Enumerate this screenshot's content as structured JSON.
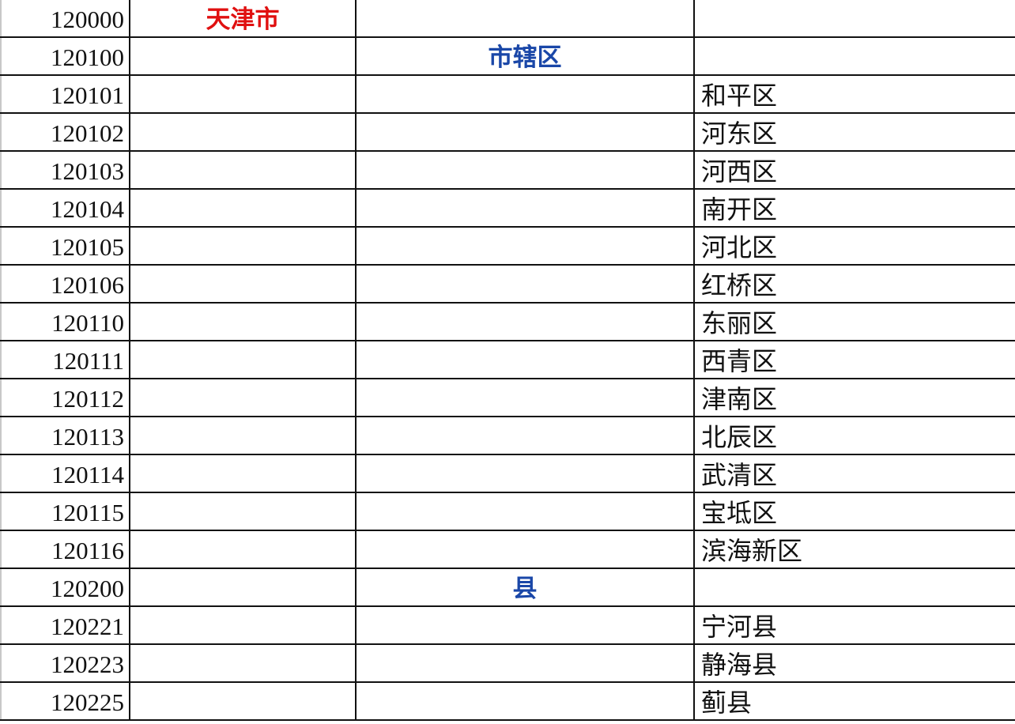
{
  "colors": {
    "province": "#e01010",
    "prefecture": "#1a47a8",
    "county": "#111111"
  },
  "rows": [
    {
      "code": "120000",
      "province": "天津市",
      "prefecture": "",
      "county": ""
    },
    {
      "code": "120100",
      "province": "",
      "prefecture": "市辖区",
      "county": ""
    },
    {
      "code": "120101",
      "province": "",
      "prefecture": "",
      "county": "和平区"
    },
    {
      "code": "120102",
      "province": "",
      "prefecture": "",
      "county": "河东区"
    },
    {
      "code": "120103",
      "province": "",
      "prefecture": "",
      "county": "河西区"
    },
    {
      "code": "120104",
      "province": "",
      "prefecture": "",
      "county": "南开区"
    },
    {
      "code": "120105",
      "province": "",
      "prefecture": "",
      "county": "河北区"
    },
    {
      "code": "120106",
      "province": "",
      "prefecture": "",
      "county": "红桥区"
    },
    {
      "code": "120110",
      "province": "",
      "prefecture": "",
      "county": "东丽区"
    },
    {
      "code": "120111",
      "province": "",
      "prefecture": "",
      "county": "西青区"
    },
    {
      "code": "120112",
      "province": "",
      "prefecture": "",
      "county": "津南区"
    },
    {
      "code": "120113",
      "province": "",
      "prefecture": "",
      "county": "北辰区"
    },
    {
      "code": "120114",
      "province": "",
      "prefecture": "",
      "county": "武清区"
    },
    {
      "code": "120115",
      "province": "",
      "prefecture": "",
      "county": "宝坻区"
    },
    {
      "code": "120116",
      "province": "",
      "prefecture": "",
      "county": "滨海新区"
    },
    {
      "code": "120200",
      "province": "",
      "prefecture": "县",
      "county": ""
    },
    {
      "code": "120221",
      "province": "",
      "prefecture": "",
      "county": "宁河县"
    },
    {
      "code": "120223",
      "province": "",
      "prefecture": "",
      "county": "静海县"
    },
    {
      "code": "120225",
      "province": "",
      "prefecture": "",
      "county": "蓟县"
    }
  ]
}
